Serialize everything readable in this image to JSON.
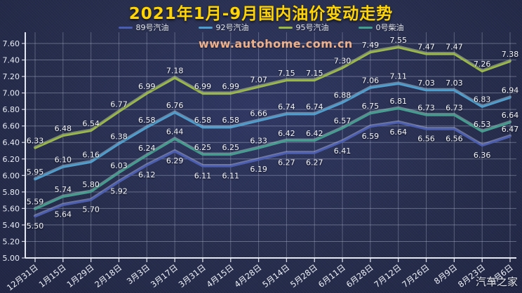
{
  "watermark": {
    "text": "www.autohome.com.cn",
    "color": "#efad84"
  },
  "brand": {
    "text": "汽车之家",
    "color": "#e3e6ec"
  },
  "chart_data": {
    "type": "line",
    "title": "2021年1月-9月国内油价变动走势",
    "title_color": "#ffd400",
    "categories": [
      "12月31日",
      "1月15日",
      "1月29日",
      "2月18日",
      "3月3日",
      "3月17日",
      "3月31日",
      "4月15日",
      "4月28日",
      "5月14日",
      "5月28日",
      "6月11日",
      "6月28日",
      "7月12日",
      "7月26日",
      "8月9日",
      "8月23日",
      "9月6日"
    ],
    "series": [
      {
        "name": "89号汽油",
        "color": "#4a5db4",
        "values": [
          5.5,
          5.64,
          5.7,
          5.92,
          6.12,
          6.29,
          6.11,
          6.11,
          6.19,
          6.27,
          6.27,
          6.41,
          6.59,
          6.64,
          6.56,
          6.56,
          6.36,
          6.47
        ],
        "label_side": [
          "below",
          "below",
          "below",
          "below",
          "below",
          "below",
          "below",
          "below",
          "below",
          "below",
          "below",
          "below",
          "below",
          "below",
          "below",
          "below",
          "below",
          "above"
        ]
      },
      {
        "name": "92号汽油",
        "color": "#4aa0d0",
        "values": [
          5.95,
          6.1,
          6.16,
          6.38,
          6.58,
          6.76,
          6.58,
          6.58,
          6.66,
          6.74,
          6.74,
          6.88,
          7.06,
          7.11,
          7.03,
          7.03,
          6.83,
          6.94
        ]
      },
      {
        "name": "95号汽油",
        "color": "#9aba40",
        "values": [
          6.33,
          6.48,
          6.54,
          6.77,
          6.99,
          7.18,
          6.99,
          6.99,
          7.07,
          7.15,
          7.15,
          7.3,
          7.49,
          7.55,
          7.47,
          7.47,
          7.26,
          7.38
        ]
      },
      {
        "name": "0号柴油",
        "color": "#3fa08e",
        "values": [
          5.59,
          5.74,
          5.8,
          6.03,
          6.24,
          6.44,
          6.25,
          6.25,
          6.33,
          6.42,
          6.42,
          6.57,
          6.75,
          6.81,
          6.73,
          6.73,
          6.53,
          6.64
        ]
      }
    ],
    "ylim": [
      5.0,
      7.6
    ],
    "ytick_step": 0.2,
    "grid": true,
    "legend_position": "top"
  }
}
